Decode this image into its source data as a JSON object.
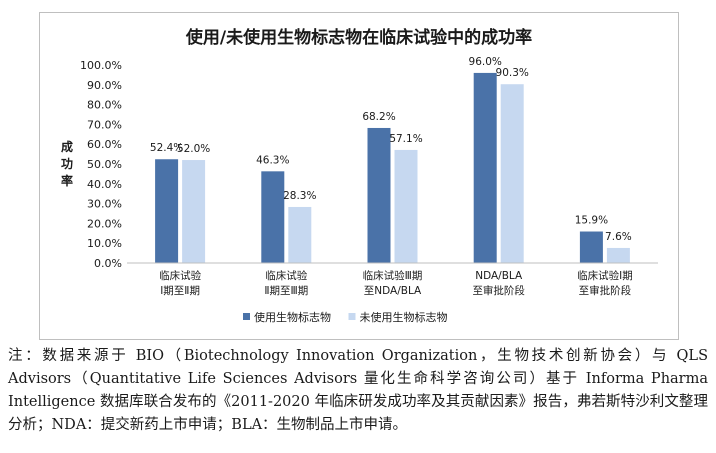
{
  "chart_data": {
    "type": "bar",
    "title": "使用/未使用生物标志物在临床试验中的成功率",
    "ylabel": "成功率",
    "ylim": [
      0,
      100
    ],
    "yticks": [
      "0.0%",
      "10.0%",
      "20.0%",
      "30.0%",
      "40.0%",
      "50.0%",
      "60.0%",
      "70.0%",
      "80.0%",
      "90.0%",
      "100.0%"
    ],
    "categories": [
      [
        "临床试验",
        "Ⅰ期至Ⅱ期"
      ],
      [
        "临床试验",
        "Ⅱ期至Ⅲ期"
      ],
      [
        "临床试验Ⅲ期",
        "至NDA/BLA"
      ],
      [
        "NDA/BLA",
        "至审批阶段"
      ],
      [
        "临床试验Ⅰ期",
        "至审批阶段"
      ]
    ],
    "series": [
      {
        "name": "使用生物标志物",
        "values": [
          52.4,
          46.3,
          68.2,
          96.0,
          15.9
        ],
        "labels": [
          "52.4%",
          "46.3%",
          "68.2%",
          "96.0%",
          "15.9%"
        ],
        "color": "#4a72a8"
      },
      {
        "name": "未使用生物标志物",
        "values": [
          52.0,
          28.3,
          57.1,
          90.3,
          7.6
        ],
        "labels": [
          "52.0%",
          "28.3%",
          "57.1%",
          "90.3%",
          "7.6%"
        ],
        "color": "#c6d8f0"
      }
    ],
    "legend_position": "bottom",
    "grid": false
  },
  "note": "注：数据来源于 BIO（Biotechnology Innovation Organization，生物技术创新协会）与 QLS Advisors（Quantitative Life Sciences Advisors 量化生命科学咨询公司）基于 Informa Pharma Intelligence 数据库联合发布的《2011-2020 年临床研发成功率及其贡献因素》报告，弗若斯特沙利文整理分析；NDA：提交新药上市申请；BLA：生物制品上市申请。"
}
